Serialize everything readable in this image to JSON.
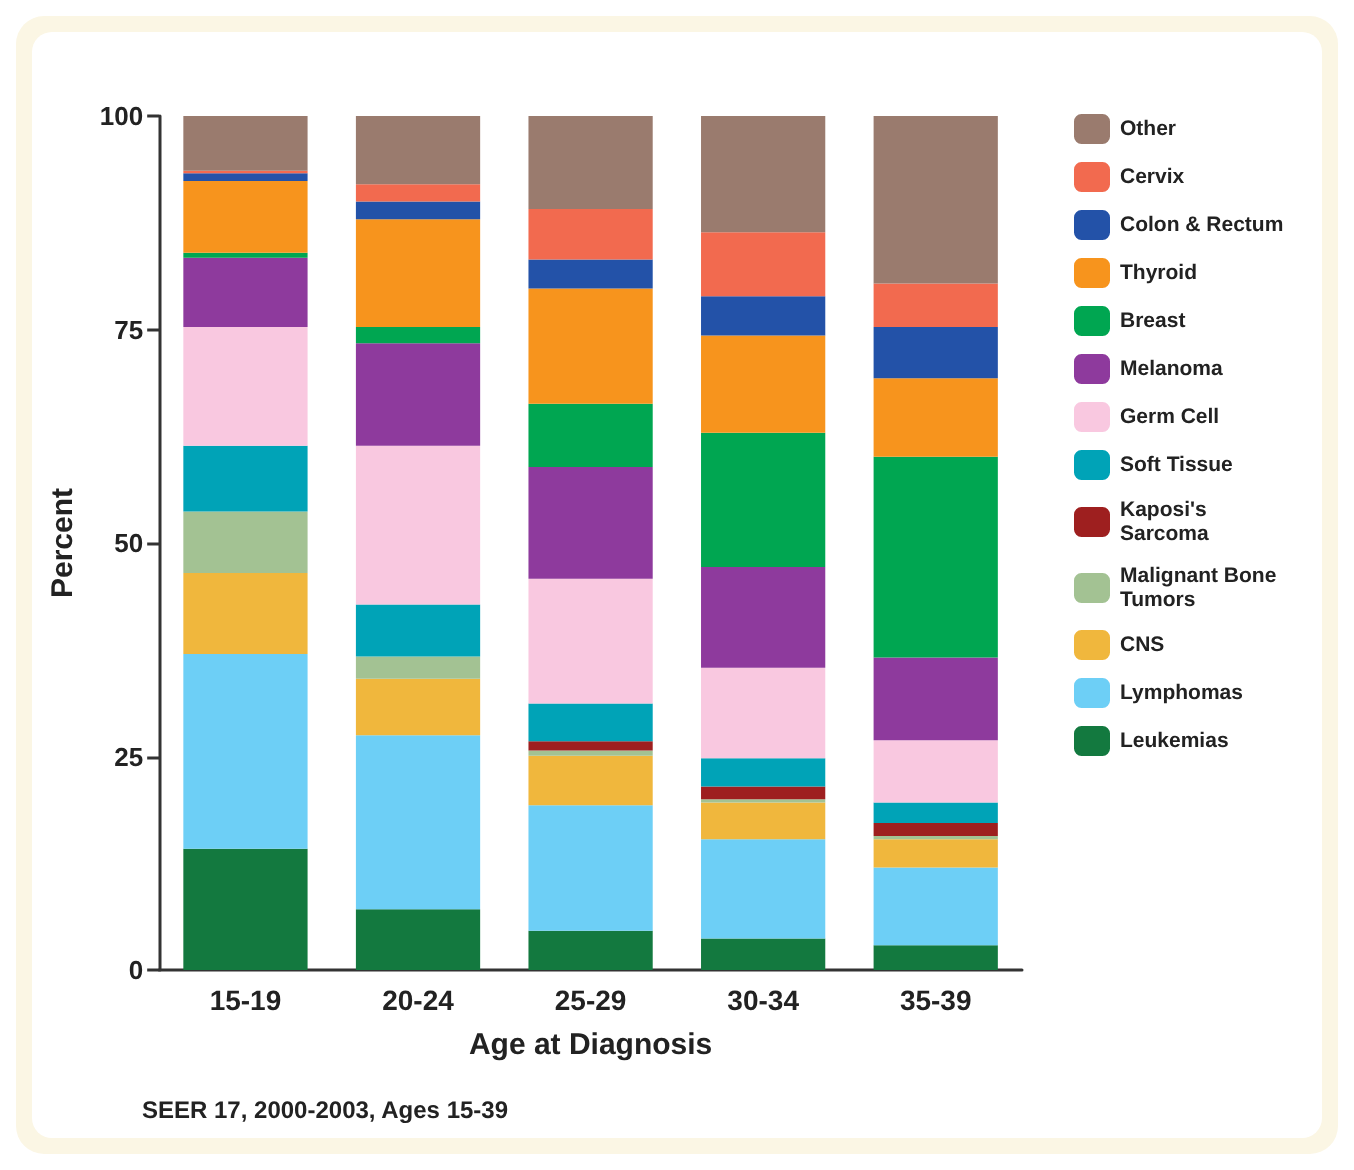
{
  "chart_data": {
    "type": "bar",
    "stacked": true,
    "xlabel": "Age at Diagnosis",
    "ylabel": "Percent",
    "categories": [
      "15-19",
      "20-24",
      "25-29",
      "30-34",
      "35-39"
    ],
    "series": [
      {
        "name": "Leukemias",
        "color": "#13793f",
        "values": [
          14.2,
          7.1,
          4.6,
          3.7,
          2.9
        ]
      },
      {
        "name": "Lymphomas",
        "color": "#6dcff6",
        "values": [
          22.8,
          20.4,
          14.7,
          11.6,
          9.1
        ]
      },
      {
        "name": "CNS",
        "color": "#f0b73d",
        "values": [
          9.5,
          6.6,
          5.8,
          4.3,
          3.3
        ]
      },
      {
        "name": "Malignant Bone Tumors",
        "color": "#a3c293",
        "values": [
          7.2,
          2.6,
          0.6,
          0.4,
          0.4
        ]
      },
      {
        "name": "Kaposi's Sarcoma",
        "color": "#9e1f1f",
        "values": [
          0,
          0,
          1.1,
          1.5,
          1.5
        ]
      },
      {
        "name": "Soft Tissue",
        "color": "#00a3b7",
        "values": [
          7.7,
          6.1,
          4.4,
          3.3,
          2.4
        ]
      },
      {
        "name": "Germ Cell",
        "color": "#f9c8e0",
        "values": [
          13.9,
          18.6,
          14.6,
          10.6,
          7.3
        ]
      },
      {
        "name": "Melanoma",
        "color": "#8e3a9d",
        "values": [
          8.1,
          12.0,
          13.1,
          11.8,
          9.7
        ]
      },
      {
        "name": "Breast",
        "color": "#00a651",
        "values": [
          0.6,
          1.9,
          7.4,
          15.7,
          23.5
        ]
      },
      {
        "name": "Thyroid",
        "color": "#f7941d",
        "values": [
          8.4,
          12.6,
          13.5,
          11.4,
          9.2
        ]
      },
      {
        "name": "Colon & Rectum",
        "color": "#2352a8",
        "values": [
          0.9,
          2.1,
          3.4,
          4.6,
          6.0
        ]
      },
      {
        "name": "Cervix",
        "color": "#f26a4f",
        "values": [
          0.3,
          2.0,
          5.9,
          7.5,
          5.1
        ]
      },
      {
        "name": "Other",
        "color": "#9a7b6e",
        "values": [
          6.4,
          8.0,
          10.9,
          13.6,
          19.6
        ]
      }
    ],
    "ylim": [
      0,
      100
    ],
    "yticks": [
      0,
      25,
      50,
      75,
      100
    ],
    "grid": false,
    "legend": "right",
    "annotations": [
      "SEER 17, 2000-2003, Ages 15-39"
    ]
  }
}
